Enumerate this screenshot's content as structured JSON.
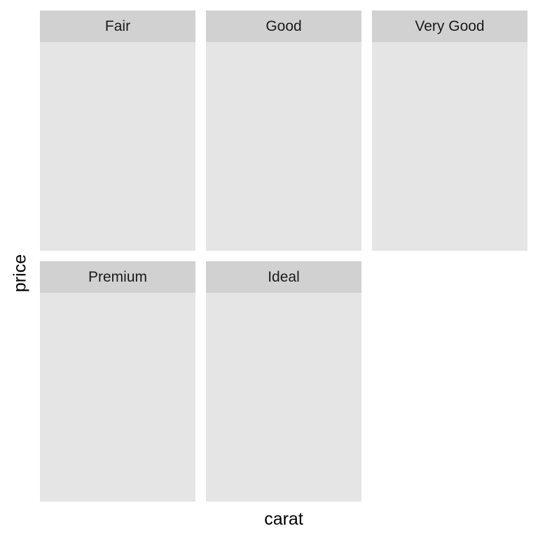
{
  "chart_data": {
    "type": "scatter",
    "facet_by": "cut",
    "facets": [
      "Fair",
      "Good",
      "Very Good",
      "Premium",
      "Ideal"
    ],
    "series": [],
    "xlabel": "carat",
    "ylabel": "price",
    "grid": false,
    "legend": "none",
    "colors": {
      "panel_background": "#e5e5e5",
      "strip_background": "#d1d1d1",
      "strip_text": "#1a1a1a",
      "axis_title": "#000000",
      "page_background": "#ffffff"
    }
  }
}
